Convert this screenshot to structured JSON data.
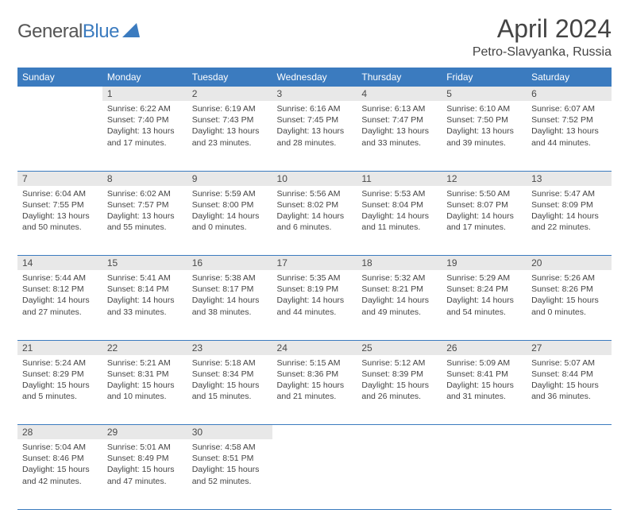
{
  "logo": {
    "part1": "General",
    "part2": "Blue"
  },
  "title": "April 2024",
  "location": "Petro-Slavyanka, Russia",
  "weekdays": [
    "Sunday",
    "Monday",
    "Tuesday",
    "Wednesday",
    "Thursday",
    "Friday",
    "Saturday"
  ],
  "header_bg": "#3b7bbf",
  "daynum_bg": "#e8e8e8",
  "divider_color": "#3b7bbf",
  "weeks": [
    [
      null,
      {
        "n": "1",
        "sr": "6:22 AM",
        "ss": "7:40 PM",
        "dl": "13 hours and 17 minutes."
      },
      {
        "n": "2",
        "sr": "6:19 AM",
        "ss": "7:43 PM",
        "dl": "13 hours and 23 minutes."
      },
      {
        "n": "3",
        "sr": "6:16 AM",
        "ss": "7:45 PM",
        "dl": "13 hours and 28 minutes."
      },
      {
        "n": "4",
        "sr": "6:13 AM",
        "ss": "7:47 PM",
        "dl": "13 hours and 33 minutes."
      },
      {
        "n": "5",
        "sr": "6:10 AM",
        "ss": "7:50 PM",
        "dl": "13 hours and 39 minutes."
      },
      {
        "n": "6",
        "sr": "6:07 AM",
        "ss": "7:52 PM",
        "dl": "13 hours and 44 minutes."
      }
    ],
    [
      {
        "n": "7",
        "sr": "6:04 AM",
        "ss": "7:55 PM",
        "dl": "13 hours and 50 minutes."
      },
      {
        "n": "8",
        "sr": "6:02 AM",
        "ss": "7:57 PM",
        "dl": "13 hours and 55 minutes."
      },
      {
        "n": "9",
        "sr": "5:59 AM",
        "ss": "8:00 PM",
        "dl": "14 hours and 0 minutes."
      },
      {
        "n": "10",
        "sr": "5:56 AM",
        "ss": "8:02 PM",
        "dl": "14 hours and 6 minutes."
      },
      {
        "n": "11",
        "sr": "5:53 AM",
        "ss": "8:04 PM",
        "dl": "14 hours and 11 minutes."
      },
      {
        "n": "12",
        "sr": "5:50 AM",
        "ss": "8:07 PM",
        "dl": "14 hours and 17 minutes."
      },
      {
        "n": "13",
        "sr": "5:47 AM",
        "ss": "8:09 PM",
        "dl": "14 hours and 22 minutes."
      }
    ],
    [
      {
        "n": "14",
        "sr": "5:44 AM",
        "ss": "8:12 PM",
        "dl": "14 hours and 27 minutes."
      },
      {
        "n": "15",
        "sr": "5:41 AM",
        "ss": "8:14 PM",
        "dl": "14 hours and 33 minutes."
      },
      {
        "n": "16",
        "sr": "5:38 AM",
        "ss": "8:17 PM",
        "dl": "14 hours and 38 minutes."
      },
      {
        "n": "17",
        "sr": "5:35 AM",
        "ss": "8:19 PM",
        "dl": "14 hours and 44 minutes."
      },
      {
        "n": "18",
        "sr": "5:32 AM",
        "ss": "8:21 PM",
        "dl": "14 hours and 49 minutes."
      },
      {
        "n": "19",
        "sr": "5:29 AM",
        "ss": "8:24 PM",
        "dl": "14 hours and 54 minutes."
      },
      {
        "n": "20",
        "sr": "5:26 AM",
        "ss": "8:26 PM",
        "dl": "15 hours and 0 minutes."
      }
    ],
    [
      {
        "n": "21",
        "sr": "5:24 AM",
        "ss": "8:29 PM",
        "dl": "15 hours and 5 minutes."
      },
      {
        "n": "22",
        "sr": "5:21 AM",
        "ss": "8:31 PM",
        "dl": "15 hours and 10 minutes."
      },
      {
        "n": "23",
        "sr": "5:18 AM",
        "ss": "8:34 PM",
        "dl": "15 hours and 15 minutes."
      },
      {
        "n": "24",
        "sr": "5:15 AM",
        "ss": "8:36 PM",
        "dl": "15 hours and 21 minutes."
      },
      {
        "n": "25",
        "sr": "5:12 AM",
        "ss": "8:39 PM",
        "dl": "15 hours and 26 minutes."
      },
      {
        "n": "26",
        "sr": "5:09 AM",
        "ss": "8:41 PM",
        "dl": "15 hours and 31 minutes."
      },
      {
        "n": "27",
        "sr": "5:07 AM",
        "ss": "8:44 PM",
        "dl": "15 hours and 36 minutes."
      }
    ],
    [
      {
        "n": "28",
        "sr": "5:04 AM",
        "ss": "8:46 PM",
        "dl": "15 hours and 42 minutes."
      },
      {
        "n": "29",
        "sr": "5:01 AM",
        "ss": "8:49 PM",
        "dl": "15 hours and 47 minutes."
      },
      {
        "n": "30",
        "sr": "4:58 AM",
        "ss": "8:51 PM",
        "dl": "15 hours and 52 minutes."
      },
      null,
      null,
      null,
      null
    ]
  ],
  "labels": {
    "sunrise": "Sunrise:",
    "sunset": "Sunset:",
    "daylight": "Daylight:"
  }
}
